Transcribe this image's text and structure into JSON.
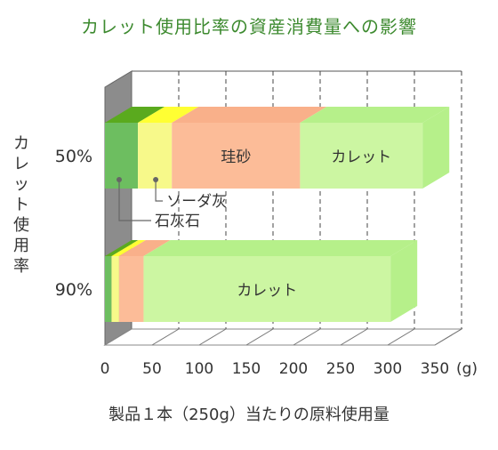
{
  "chart_data": {
    "type": "bar",
    "orientation": "horizontal",
    "stacked": true,
    "three_d": true,
    "title": "カレット使用比率の資産消費量への影響",
    "xlabel": "製品１本（250g）当たりの原料使用量",
    "ylabel": "カレット使用率",
    "x_unit": "(g)",
    "xlim": [
      0,
      350
    ],
    "xticks": [
      0,
      50,
      100,
      150,
      200,
      250,
      300,
      350
    ],
    "grid": true,
    "categories": [
      "50%",
      "90%"
    ],
    "series": [
      {
        "name": "石灰石",
        "color": "#6dbe60",
        "top_color": "#5aaa1e",
        "values": [
          35,
          7
        ]
      },
      {
        "name": "ソーダ灰",
        "color": "#f7f98a",
        "top_color": "#ffff33",
        "values": [
          36,
          8
        ]
      },
      {
        "name": "珪砂",
        "color": "#fcbc98",
        "top_color": "#f9b08a",
        "values": [
          136,
          26
        ]
      },
      {
        "name": "カレット",
        "color": "#ccf6a2",
        "top_color": "#b6f08a",
        "values": [
          130,
          262
        ]
      }
    ],
    "bar_labels": [
      {
        "category": "50%",
        "series": "珪砂",
        "text": "珪砂"
      },
      {
        "category": "50%",
        "series": "カレット",
        "text": "カレット"
      },
      {
        "category": "90%",
        "series": "カレット",
        "text": "カレット"
      }
    ],
    "callouts": [
      {
        "series": "ソーダ灰",
        "text": "ソーダ灰"
      },
      {
        "series": "石灰石",
        "text": "石灰石"
      }
    ]
  }
}
